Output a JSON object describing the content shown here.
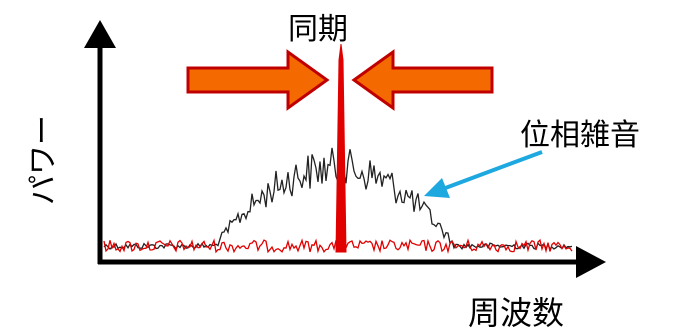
{
  "labels": {
    "title": "同期",
    "y_axis": "パワー",
    "x_axis": "周波数",
    "annotation": "位相雑音"
  },
  "colors": {
    "axis": "#000000",
    "free_running_spectrum": "#222222",
    "locked_spectrum": "#e00000",
    "compression_arrows_fill": "#f46a00",
    "compression_arrows_stroke": "#c00000",
    "annotation_arrow": "#1ea8e0"
  },
  "icons": [
    "up-arrow-icon",
    "right-arrow-icon",
    "left-pointing-arrow-icon",
    "right-pointing-arrow-icon",
    "callout-arrow-icon"
  ]
}
